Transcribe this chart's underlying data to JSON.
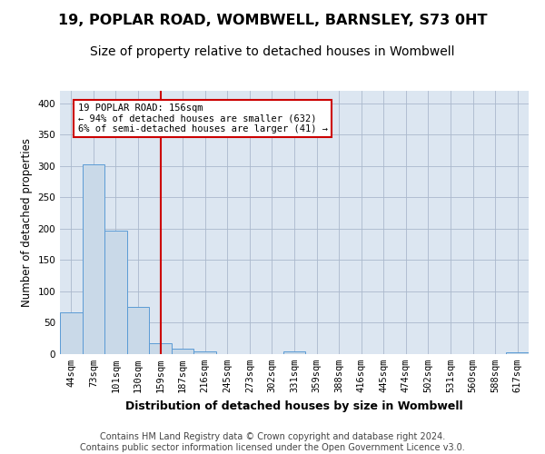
{
  "title": "19, POPLAR ROAD, WOMBWELL, BARNSLEY, S73 0HT",
  "subtitle": "Size of property relative to detached houses in Wombwell",
  "xlabel": "Distribution of detached houses by size in Wombwell",
  "ylabel": "Number of detached properties",
  "categories": [
    "44sqm",
    "73sqm",
    "101sqm",
    "130sqm",
    "159sqm",
    "187sqm",
    "216sqm",
    "245sqm",
    "273sqm",
    "302sqm",
    "331sqm",
    "359sqm",
    "388sqm",
    "416sqm",
    "445sqm",
    "474sqm",
    "502sqm",
    "531sqm",
    "560sqm",
    "588sqm",
    "617sqm"
  ],
  "values": [
    67,
    303,
    197,
    76,
    18,
    9,
    5,
    0,
    0,
    0,
    5,
    0,
    0,
    0,
    0,
    0,
    0,
    0,
    0,
    0,
    3
  ],
  "bar_color": "#c9d9e8",
  "bar_edge_color": "#5b9bd5",
  "vline_x": 4,
  "vline_color": "#cc0000",
  "annotation_text": "19 POPLAR ROAD: 156sqm\n← 94% of detached houses are smaller (632)\n6% of semi-detached houses are larger (41) →",
  "annotation_box_color": "#cc0000",
  "footer": "Contains HM Land Registry data © Crown copyright and database right 2024.\nContains public sector information licensed under the Open Government Licence v3.0.",
  "ylim": [
    0,
    420
  ],
  "yticks": [
    0,
    50,
    100,
    150,
    200,
    250,
    300,
    350,
    400
  ],
  "grid_color": "#aab8cc",
  "background_color": "#dce6f1",
  "title_fontsize": 11.5,
  "subtitle_fontsize": 10,
  "xlabel_fontsize": 9,
  "ylabel_fontsize": 8.5,
  "tick_fontsize": 7.5,
  "footer_fontsize": 7
}
